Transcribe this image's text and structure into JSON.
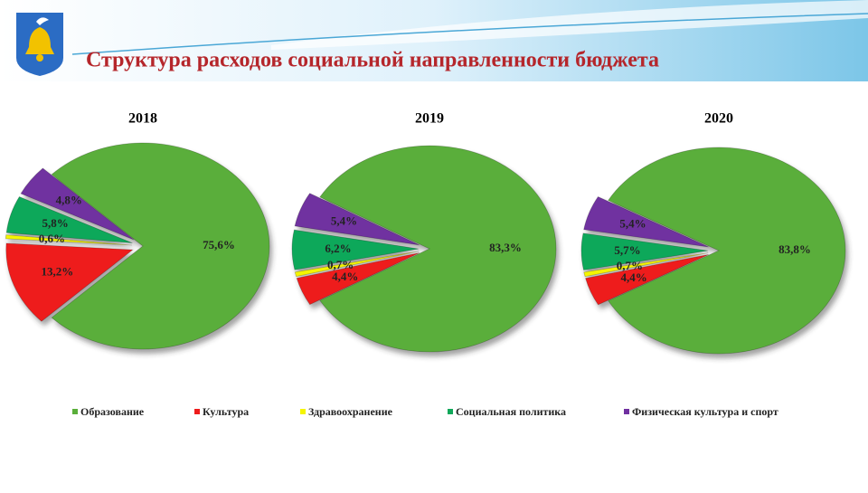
{
  "title": "Структура расходов социальной направленности бюджета",
  "legend": {
    "categories": [
      "Образование",
      "Культура",
      "Здравоохранение",
      "Социальная политика",
      "Физическая культура и спорт"
    ],
    "colors": [
      "#5aae3a",
      "#ee1c1c",
      "#f5f500",
      "#10a85a",
      "#7030a0"
    ]
  },
  "chart_data": [
    {
      "type": "pie",
      "title": "2018",
      "values": [
        75.6,
        13.2,
        0.6,
        5.8,
        4.8
      ],
      "value_labels": [
        "75,6%",
        "13,2%",
        "0,6%",
        "5,8%",
        "4,8%"
      ]
    },
    {
      "type": "pie",
      "title": "2019",
      "values": [
        83.3,
        4.4,
        0.7,
        6.2,
        5.4
      ],
      "value_labels": [
        "83,3%",
        "4,4%",
        "0,7%",
        "6,2%",
        "5,4%"
      ]
    },
    {
      "type": "pie",
      "title": "2020",
      "values": [
        83.8,
        4.4,
        0.7,
        5.7,
        5.4
      ],
      "value_labels": [
        "83,8%",
        "4,4%",
        "0,7%",
        "5,7%",
        "5,4%"
      ]
    }
  ]
}
